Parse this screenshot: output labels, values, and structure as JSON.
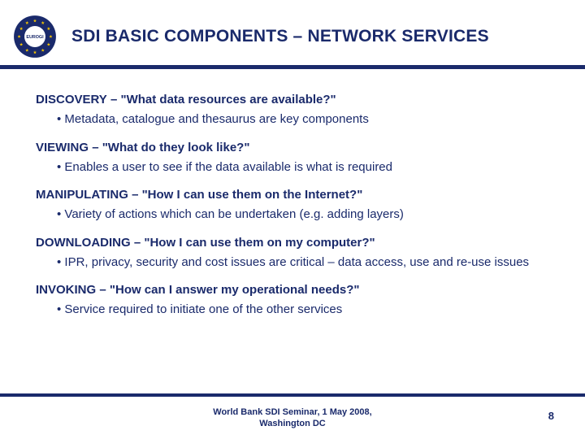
{
  "colors": {
    "brand": "#1a2a6b",
    "star": "#f2c300",
    "background": "#ffffff"
  },
  "logo": {
    "inner_text": "EUROGI",
    "star_count": 12
  },
  "title": "SDI BASIC COMPONENTS – NETWORK SERVICES",
  "sections": [
    {
      "label": "DISCOVERY",
      "question": "– \"What data resources are available?\"",
      "bullet": "Metadata, catalogue and thesaurus are key components"
    },
    {
      "label": "VIEWING",
      "question": "– \"What do they look like?\"",
      "bullet": "Enables a user to see if the data available is what is required"
    },
    {
      "label": "MANIPULATING",
      "question": "– \"How I can use them on the Internet?\"",
      "bullet": "Variety of actions which can be undertaken (e.g. adding layers)"
    },
    {
      "label": "DOWNLOADING",
      "question": "– \"How I can use them on my computer?\"",
      "bullet": "IPR, privacy, security and cost issues are critical – data access, use and re-use issues"
    },
    {
      "label": "INVOKING",
      "question": "– \"How can I answer my operational needs?\"",
      "bullet": "Service required to initiate one of the other services"
    }
  ],
  "footer": {
    "line1": "World Bank SDI Seminar, 1 May 2008,",
    "line2": "Washington DC",
    "page": "8"
  }
}
